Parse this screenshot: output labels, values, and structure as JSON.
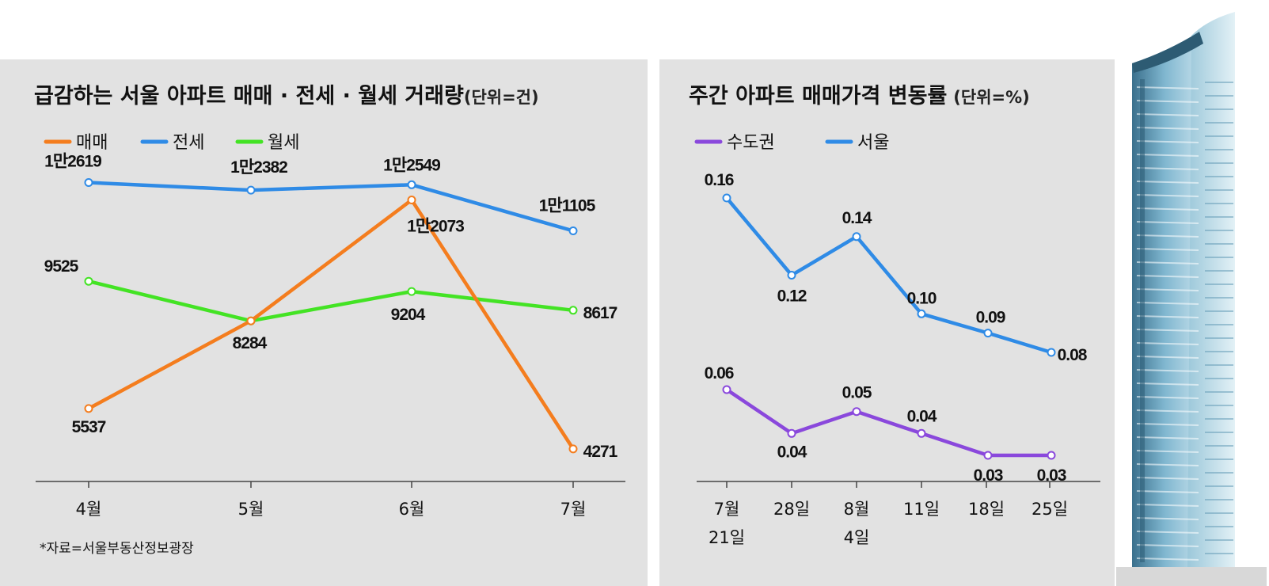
{
  "source": "*자료=서울부동산정보광장",
  "colors": {
    "panel_bg": "#e2e2e2",
    "sale": "#f47d1e",
    "jeonse": "#2f8be6",
    "monthly": "#43e324",
    "capital": "#8a48dc",
    "seoul": "#2f8be6"
  },
  "chart_data": [
    {
      "type": "line",
      "title": "급감하는 서울 아파트 매매 · 전세 · 월세 거래량",
      "unit": "(단위=건)",
      "categories": [
        "4월",
        "5월",
        "6월",
        "7월"
      ],
      "ylim": [
        3500,
        13500
      ],
      "legend_position": "top-left",
      "series": [
        {
          "key": "sale",
          "name": "매매",
          "values": [
            5537,
            8284,
            12073,
            4271
          ],
          "labels": [
            "5537",
            "8284",
            "1만2073",
            "4271"
          ]
        },
        {
          "key": "jeonse",
          "name": "전세",
          "values": [
            12619,
            12382,
            12549,
            11105
          ],
          "labels": [
            "1만2619",
            "1만2382",
            "1만2549",
            "1만1105"
          ]
        },
        {
          "key": "monthly",
          "name": "월세",
          "values": [
            9525,
            8284,
            9204,
            8617
          ],
          "labels": [
            "9525",
            "",
            "9204",
            "8617"
          ]
        }
      ]
    },
    {
      "type": "line",
      "title": "주간 아파트 매매가격 변동률",
      "unit": "(단위=%)",
      "categories": [
        [
          "7월",
          "21일"
        ],
        [
          "28일"
        ],
        [
          "8월",
          "4일"
        ],
        [
          "11일"
        ],
        [
          "18일"
        ],
        [
          "25일"
        ]
      ],
      "ylim": [
        0.0,
        0.18
      ],
      "legend_position": "top-left",
      "series": [
        {
          "key": "capital",
          "name": "수도권",
          "values": [
            0.06,
            0.04,
            0.05,
            0.04,
            0.03,
            0.03
          ],
          "labels": [
            "0.06",
            "0.04",
            "0.05",
            "0.04",
            "0.03",
            "0.03"
          ]
        },
        {
          "key": "seoul",
          "name": "서울",
          "values": [
            0.16,
            0.12,
            0.14,
            0.1,
            0.09,
            0.08
          ],
          "labels": [
            "0.16",
            "0.12",
            "0.14",
            "0.10",
            "0.09",
            "0.08"
          ]
        }
      ]
    }
  ]
}
